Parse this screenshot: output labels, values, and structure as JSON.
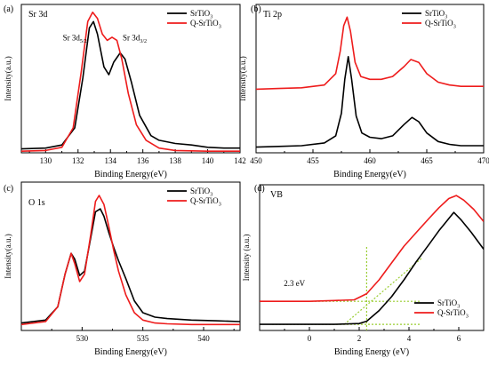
{
  "colors": {
    "black_series": "#000000",
    "red_series": "#ee1c1c",
    "guide": "#9acd32"
  },
  "chart_data": [
    {
      "panel_label": "(a)",
      "type": "line",
      "title": "Sr 3d",
      "xlabel": "Binding Energy(eV)",
      "ylabel": "Intensity(a.u.)",
      "xlim": [
        128.5,
        142
      ],
      "x_ticks": [
        130,
        132,
        134,
        136,
        138,
        140,
        142
      ],
      "y_ticks_labeled": false,
      "legend": "top-right",
      "annotations": [
        {
          "base": "Sr 3d",
          "sub": "5/2",
          "x": 131.8,
          "y": 0.72
        },
        {
          "base": "Sr 3d",
          "sub": "3/2",
          "x": 135.5,
          "y": 0.72
        }
      ],
      "series": [
        {
          "name": "SrTiO",
          "name_sub": "3",
          "color": "#000000",
          "x": [
            128.5,
            130,
            131,
            131.8,
            132.3,
            132.7,
            132.95,
            133.2,
            133.6,
            133.9,
            134.2,
            134.6,
            134.9,
            135.3,
            135.8,
            136.5,
            137,
            138,
            139,
            140,
            141,
            142
          ],
          "y": [
            0.025,
            0.03,
            0.05,
            0.16,
            0.48,
            0.8,
            0.84,
            0.76,
            0.55,
            0.5,
            0.58,
            0.64,
            0.6,
            0.45,
            0.24,
            0.11,
            0.08,
            0.06,
            0.05,
            0.035,
            0.03,
            0.03
          ]
        },
        {
          "name": "Q-SrTiO",
          "name_sub": "3",
          "color": "#ee1c1c",
          "x": [
            128.5,
            130,
            131,
            131.7,
            132.2,
            132.6,
            132.9,
            133.2,
            133.5,
            133.8,
            134.1,
            134.4,
            134.7,
            135.1,
            135.6,
            136.2,
            137,
            138,
            140,
            142
          ],
          "y": [
            0.01,
            0.015,
            0.035,
            0.16,
            0.52,
            0.84,
            0.9,
            0.86,
            0.76,
            0.72,
            0.74,
            0.72,
            0.6,
            0.38,
            0.18,
            0.08,
            0.03,
            0.015,
            0.01,
            0.01
          ]
        }
      ]
    },
    {
      "panel_label": "(b)",
      "type": "line",
      "title": "Ti 2p",
      "xlabel": "Binding Energy(eV)",
      "ylabel": "Intensity(a.u.)",
      "xlim": [
        450,
        470
      ],
      "x_ticks": [
        450,
        455,
        460,
        465,
        470
      ],
      "y_ticks_labeled": false,
      "legend": "top-right",
      "series": [
        {
          "name": "SrTiO",
          "name_sub": "3",
          "color": "#000000",
          "x": [
            450,
            452,
            454,
            456,
            457,
            457.5,
            457.8,
            458.1,
            458.4,
            458.8,
            459.3,
            460,
            461,
            462,
            463,
            463.7,
            464.3,
            465,
            466,
            467,
            468,
            470
          ],
          "y": [
            0.04,
            0.045,
            0.05,
            0.07,
            0.12,
            0.28,
            0.52,
            0.68,
            0.52,
            0.26,
            0.14,
            0.11,
            0.1,
            0.12,
            0.2,
            0.25,
            0.22,
            0.14,
            0.08,
            0.06,
            0.05,
            0.05
          ]
        },
        {
          "name": "Q-SrTiO",
          "name_sub": "3",
          "color": "#ee1c1c",
          "x": [
            450,
            452,
            454,
            456,
            457,
            457.4,
            457.7,
            458,
            458.3,
            458.7,
            459.2,
            460,
            461,
            462,
            463,
            463.6,
            464.3,
            465,
            466,
            467,
            468,
            470
          ],
          "y": [
            0.45,
            0.455,
            0.46,
            0.48,
            0.56,
            0.72,
            0.9,
            0.96,
            0.86,
            0.64,
            0.54,
            0.52,
            0.52,
            0.54,
            0.61,
            0.66,
            0.64,
            0.56,
            0.5,
            0.48,
            0.47,
            0.47
          ]
        }
      ]
    },
    {
      "panel_label": "(c)",
      "type": "line",
      "title": "O 1s",
      "xlabel": "Binding Energy(eV)",
      "ylabel": "Intensity(a.u.)",
      "xlim": [
        525,
        543
      ],
      "x_ticks": [
        530,
        535,
        540
      ],
      "y_ticks_labeled": false,
      "legend": "top-right",
      "series": [
        {
          "name": "SrTiO",
          "name_sub": "3",
          "color": "#000000",
          "x": [
            525,
            527,
            528,
            528.6,
            529.1,
            529.4,
            529.8,
            530.2,
            530.7,
            531.1,
            531.5,
            531.8,
            532.2,
            532.6,
            533,
            533.6,
            534.3,
            535,
            536,
            537,
            539,
            541,
            543
          ],
          "y": [
            0.05,
            0.07,
            0.16,
            0.38,
            0.52,
            0.48,
            0.37,
            0.4,
            0.62,
            0.8,
            0.82,
            0.77,
            0.66,
            0.56,
            0.47,
            0.35,
            0.2,
            0.12,
            0.09,
            0.08,
            0.07,
            0.065,
            0.06
          ]
        },
        {
          "name": "Q-SrTiO",
          "name_sub": "3",
          "color": "#ee1c1c",
          "x": [
            525,
            527,
            528,
            528.6,
            529.1,
            529.4,
            529.8,
            530.2,
            530.7,
            531.1,
            531.4,
            531.8,
            532.2,
            532.6,
            533,
            533.6,
            534.3,
            535,
            536,
            537,
            539,
            541,
            543
          ],
          "y": [
            0.04,
            0.06,
            0.16,
            0.38,
            0.52,
            0.45,
            0.33,
            0.38,
            0.64,
            0.87,
            0.91,
            0.85,
            0.7,
            0.54,
            0.4,
            0.24,
            0.12,
            0.07,
            0.05,
            0.045,
            0.04,
            0.04,
            0.04
          ]
        }
      ]
    },
    {
      "panel_label": "(d)",
      "type": "line",
      "title": "VB",
      "xlabel": "Binding Energy (eV)",
      "ylabel": "Intensity (a.u.)",
      "xlim": [
        -2,
        7
      ],
      "x_ticks": [
        0,
        2,
        4,
        6
      ],
      "y_ticks_labeled": false,
      "legend": "bottom-right",
      "annotations": [
        {
          "text": "2.3 eV",
          "x": -0.6,
          "y": 0.29
        }
      ],
      "guides": [
        {
          "x": [
            1.4,
            4.5
          ],
          "y": [
            0.04,
            0.47
          ]
        },
        {
          "x": [
            2.3,
            2.3
          ],
          "y": [
            0.0,
            0.55
          ]
        },
        {
          "x": [
            -1.5,
            4.5
          ],
          "y": [
            0.19,
            0.19
          ]
        },
        {
          "x": [
            -1.5,
            4.5
          ],
          "y": [
            0.04,
            0.04
          ]
        }
      ],
      "series": [
        {
          "name": "SrTiO",
          "name_sub": "3",
          "color": "#000000",
          "x": [
            -2,
            -1,
            0,
            1,
            2,
            2.3,
            2.8,
            3.3,
            3.8,
            4.3,
            4.8,
            5.2,
            5.6,
            5.8,
            6.1,
            6.5,
            7
          ],
          "y": [
            0.04,
            0.04,
            0.04,
            0.04,
            0.045,
            0.06,
            0.13,
            0.22,
            0.33,
            0.45,
            0.56,
            0.65,
            0.73,
            0.77,
            0.72,
            0.64,
            0.53
          ]
        },
        {
          "name": "Q-SrTiO",
          "name_sub": "3",
          "color": "#ee1c1c",
          "x": [
            -2,
            -1,
            0,
            1,
            1.8,
            2.3,
            2.8,
            3.3,
            3.8,
            4.3,
            4.8,
            5.2,
            5.6,
            5.9,
            6.2,
            6.6,
            7
          ],
          "y": [
            0.19,
            0.19,
            0.19,
            0.195,
            0.2,
            0.24,
            0.33,
            0.44,
            0.55,
            0.64,
            0.73,
            0.8,
            0.86,
            0.88,
            0.85,
            0.79,
            0.71
          ]
        }
      ]
    }
  ]
}
